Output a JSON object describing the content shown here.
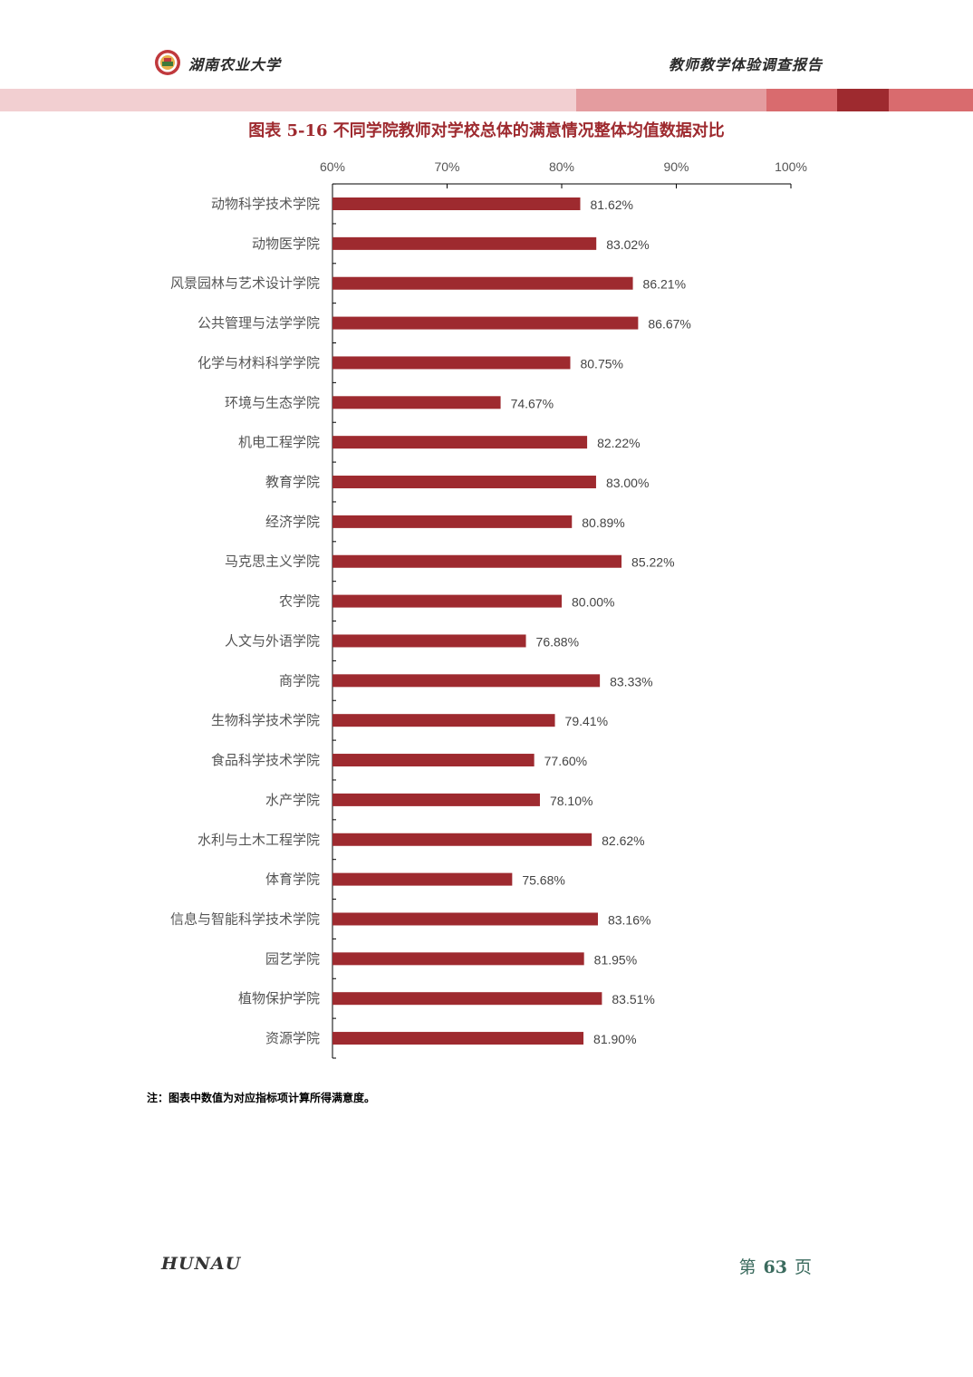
{
  "header": {
    "university": "湖南农业大学",
    "report": "教师教学体验调查报告"
  },
  "colors": {
    "bar": "#9e2a2f",
    "title": "#9e2a2f",
    "band_light": "#f2cfd1",
    "band_mid": "#e49c9f",
    "band_accent": "#d96b6e",
    "band_dark": "#9e2a2f"
  },
  "chart_data": {
    "type": "bar",
    "orientation": "horizontal",
    "title": "图表  5-16  不同学院教师对学校总体的满意情况整体均值数据对比",
    "xlim": [
      60,
      100
    ],
    "x_ticks": [
      "60%",
      "70%",
      "80%",
      "90%",
      "100%"
    ],
    "categories": [
      "动物科学技术学院",
      "动物医学院",
      "风景园林与艺术设计学院",
      "公共管理与法学学院",
      "化学与材料科学学院",
      "环境与生态学院",
      "机电工程学院",
      "教育学院",
      "经济学院",
      "马克思主义学院",
      "农学院",
      "人文与外语学院",
      "商学院",
      "生物科学技术学院",
      "食品科学技术学院",
      "水产学院",
      "水利与土木工程学院",
      "体育学院",
      "信息与智能科学技术学院",
      "园艺学院",
      "植物保护学院",
      "资源学院"
    ],
    "values": [
      81.62,
      83.02,
      86.21,
      86.67,
      80.75,
      74.67,
      82.22,
      83.0,
      80.89,
      85.22,
      80.0,
      76.88,
      83.33,
      79.41,
      77.6,
      78.1,
      82.62,
      75.68,
      83.16,
      81.95,
      83.51,
      81.9
    ],
    "labels": [
      "81.62%",
      "83.02%",
      "86.21%",
      "86.67%",
      "80.75%",
      "74.67%",
      "82.22%",
      "83.00%",
      "80.89%",
      "85.22%",
      "80.00%",
      "76.88%",
      "83.33%",
      "79.41%",
      "77.60%",
      "78.10%",
      "82.62%",
      "75.68%",
      "83.16%",
      "81.95%",
      "83.51%",
      "81.90%"
    ],
    "grid": false,
    "legend": "none"
  },
  "note": "注：图表中数值为对应指标项计算所得满意度。",
  "footer": {
    "logo": "HUNAU",
    "page_prefix": "第",
    "page_number": "63",
    "page_suffix": "页"
  }
}
